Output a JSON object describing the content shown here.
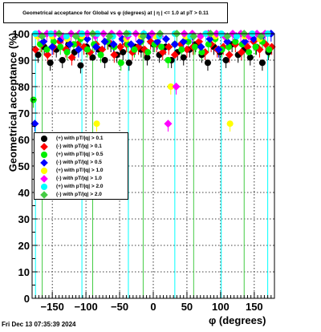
{
  "timestamp": "Fri Dec 13 07:35:39 2024",
  "chart_data": {
    "type": "scatter",
    "title": "Geometrical acceptance for Global vs φ (degrees) at | η | <= 1.0 at pT > 0.11",
    "xlabel": "φ (degrees)",
    "ylabel": "Geometrical acceptance (%)",
    "xlim": [
      -180,
      180
    ],
    "ylim": [
      0,
      100
    ],
    "xticks": [
      -150,
      -100,
      -50,
      0,
      50,
      100,
      150
    ],
    "yticks": [
      0,
      10,
      20,
      30,
      40,
      50,
      60,
      70,
      80,
      90,
      100
    ],
    "grid": true,
    "legend_position": "left-middle",
    "series": [
      {
        "name": "(+) with pT/|q| > 0.1",
        "color": "#000000",
        "x": [
          -171,
          -162,
          -153,
          -144,
          -135,
          -126,
          -117,
          -108,
          -99,
          -90,
          -81,
          -72,
          -63,
          -54,
          -45,
          -36,
          -27,
          -18,
          -9,
          0,
          9,
          18,
          27,
          36,
          45,
          54,
          63,
          72,
          81,
          90,
          99,
          108,
          117,
          126,
          135,
          144,
          153,
          162,
          171
        ],
        "y": [
          92,
          95,
          89,
          94,
          90,
          96,
          93,
          88,
          95,
          91,
          94,
          90,
          96,
          92,
          93,
          89,
          95,
          94,
          91,
          96,
          92,
          95,
          90,
          93,
          91,
          94,
          96,
          92,
          89,
          95,
          93,
          90,
          96,
          92,
          94,
          91,
          95,
          89,
          93
        ]
      },
      {
        "name": "(-) with pT/|q| > 0.1",
        "color": "#ff0000",
        "x": [
          -175,
          -166,
          -157,
          -148,
          -139,
          -130,
          -121,
          -112,
          -103,
          -94,
          -85,
          -76,
          -67,
          -58,
          -49,
          -40,
          -31,
          -22,
          -13,
          -4,
          5,
          14,
          23,
          32,
          41,
          50,
          59,
          68,
          77,
          86,
          95,
          104,
          113,
          122,
          131,
          140,
          149,
          158,
          167,
          176
        ],
        "y": [
          94,
          96,
          92,
          95,
          97,
          94,
          91,
          96,
          95,
          93,
          96,
          94,
          97,
          92,
          95,
          96,
          93,
          95,
          94,
          97,
          96,
          93,
          95,
          92,
          96,
          94,
          95,
          97,
          93,
          96,
          94,
          95,
          92,
          96,
          93,
          95,
          97,
          94,
          96,
          95
        ]
      },
      {
        "name": "(+) with pT/|q| > 0.5",
        "color": "#00ee00",
        "x": [
          -178,
          -168,
          -158,
          -148,
          -138,
          -128,
          -118,
          -108,
          -98,
          -88,
          -78,
          -68,
          -58,
          -48,
          -38,
          -28,
          -18,
          -8,
          2,
          12,
          22,
          32,
          42,
          52,
          62,
          72,
          82,
          92,
          102,
          112,
          122,
          132,
          142,
          152,
          162,
          172
        ],
        "y": [
          75,
          96,
          94,
          97,
          95,
          93,
          96,
          98,
          94,
          96,
          92,
          97,
          95,
          89,
          96,
          94,
          97,
          93,
          96,
          95,
          90,
          96,
          94,
          97,
          95,
          93,
          96,
          98,
          94,
          95,
          97,
          96,
          93,
          95,
          97,
          94
        ]
      },
      {
        "name": "(-) with pT/|q| > 0.5",
        "color": "#0000ff",
        "x": [
          -176,
          -163,
          -150,
          -137,
          -124,
          -111,
          -98,
          -85,
          -72,
          -59,
          -46,
          -33,
          -20,
          -7,
          6,
          19,
          32,
          45,
          58,
          71,
          84,
          97,
          110,
          123,
          136,
          149,
          162,
          175
        ],
        "y": [
          66,
          97,
          95,
          98,
          96,
          94,
          98,
          95,
          97,
          96,
          98,
          96,
          97,
          99,
          97,
          98,
          96,
          97,
          99,
          95,
          98,
          94,
          97,
          99,
          97,
          98,
          99,
          100
        ]
      },
      {
        "name": "(+) with pT/|q| > 1.0",
        "color": "#ffff00",
        "x": [
          -172,
          -150,
          -128,
          -106,
          -84,
          -62,
          -40,
          -18,
          4,
          26,
          48,
          70,
          92,
          114,
          136,
          158
        ],
        "y": [
          99,
          99,
          98,
          99,
          66,
          99,
          98,
          99,
          99,
          80,
          99,
          99,
          99,
          66,
          99,
          98
        ]
      },
      {
        "name": "(-) with pT/|q| > 1.0",
        "color": "#ff00ff",
        "x": [
          -170,
          -158,
          -146,
          -134,
          -122,
          -110,
          -98,
          -86,
          -74,
          -62,
          -50,
          -38,
          -26,
          -14,
          -2,
          10,
          22,
          34,
          46,
          58,
          70,
          82,
          94,
          106,
          118,
          130,
          142,
          154,
          166
        ],
        "y": [
          100,
          100,
          100,
          99,
          100,
          100,
          100,
          99,
          100,
          100,
          100,
          99,
          100,
          100,
          100,
          99,
          66,
          80,
          100,
          100,
          99,
          100,
          100,
          99,
          100,
          100,
          99,
          100,
          100
        ]
      },
      {
        "name": "(+) with pT/|q| > 2.0",
        "color": "#00ffff",
        "x": [
          -175,
          -152,
          -129,
          -106,
          -83,
          -60,
          -37,
          -14,
          9,
          32,
          55,
          78,
          101,
          124,
          147,
          170
        ],
        "y": [
          100,
          100,
          99,
          100,
          100,
          99,
          100,
          100,
          99,
          100,
          99,
          100,
          100,
          99,
          100,
          100
        ]
      },
      {
        "name": "(-) with pT/|q| > 2.0",
        "color": "#44cc44",
        "x": [
          -165,
          -140,
          -115,
          -90,
          -65,
          -40,
          -15,
          10,
          35,
          60,
          85,
          110,
          135,
          160
        ],
        "y": [
          99,
          100,
          99,
          100,
          99,
          100,
          99,
          100,
          100,
          99,
          100,
          99,
          100,
          99
        ]
      }
    ]
  }
}
